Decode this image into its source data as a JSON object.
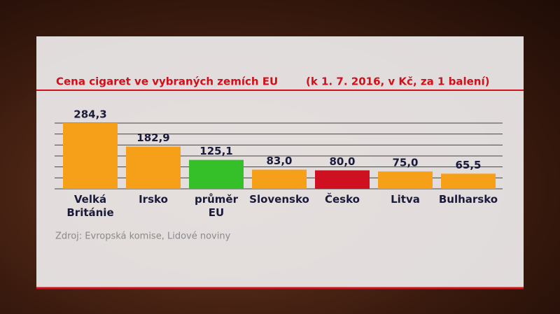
{
  "chart_data": {
    "type": "bar",
    "title": "Cena cigaret ve vybraných zemích EU",
    "subtitle": "(k 1. 7. 2016, v Kč, za 1 balení)",
    "categories": [
      "Velká\nBritánie",
      "Irsko",
      "průměr\nEU",
      "Slovensko",
      "Česko",
      "Litva",
      "Bulharsko"
    ],
    "values": [
      284.3,
      182.9,
      125.1,
      83.0,
      80.0,
      75.0,
      65.5
    ],
    "value_labels": [
      "284,3",
      "182,9",
      "125,1",
      "83,0",
      "80,0",
      "75,0",
      "65,5"
    ],
    "colors": [
      "#f6a01a",
      "#f6a01a",
      "#35c02a",
      "#f6a01a",
      "#cf1020",
      "#f6a01a",
      "#f6a01a"
    ],
    "source": "Zdroj: Evropská komise, Lidové noviny"
  }
}
